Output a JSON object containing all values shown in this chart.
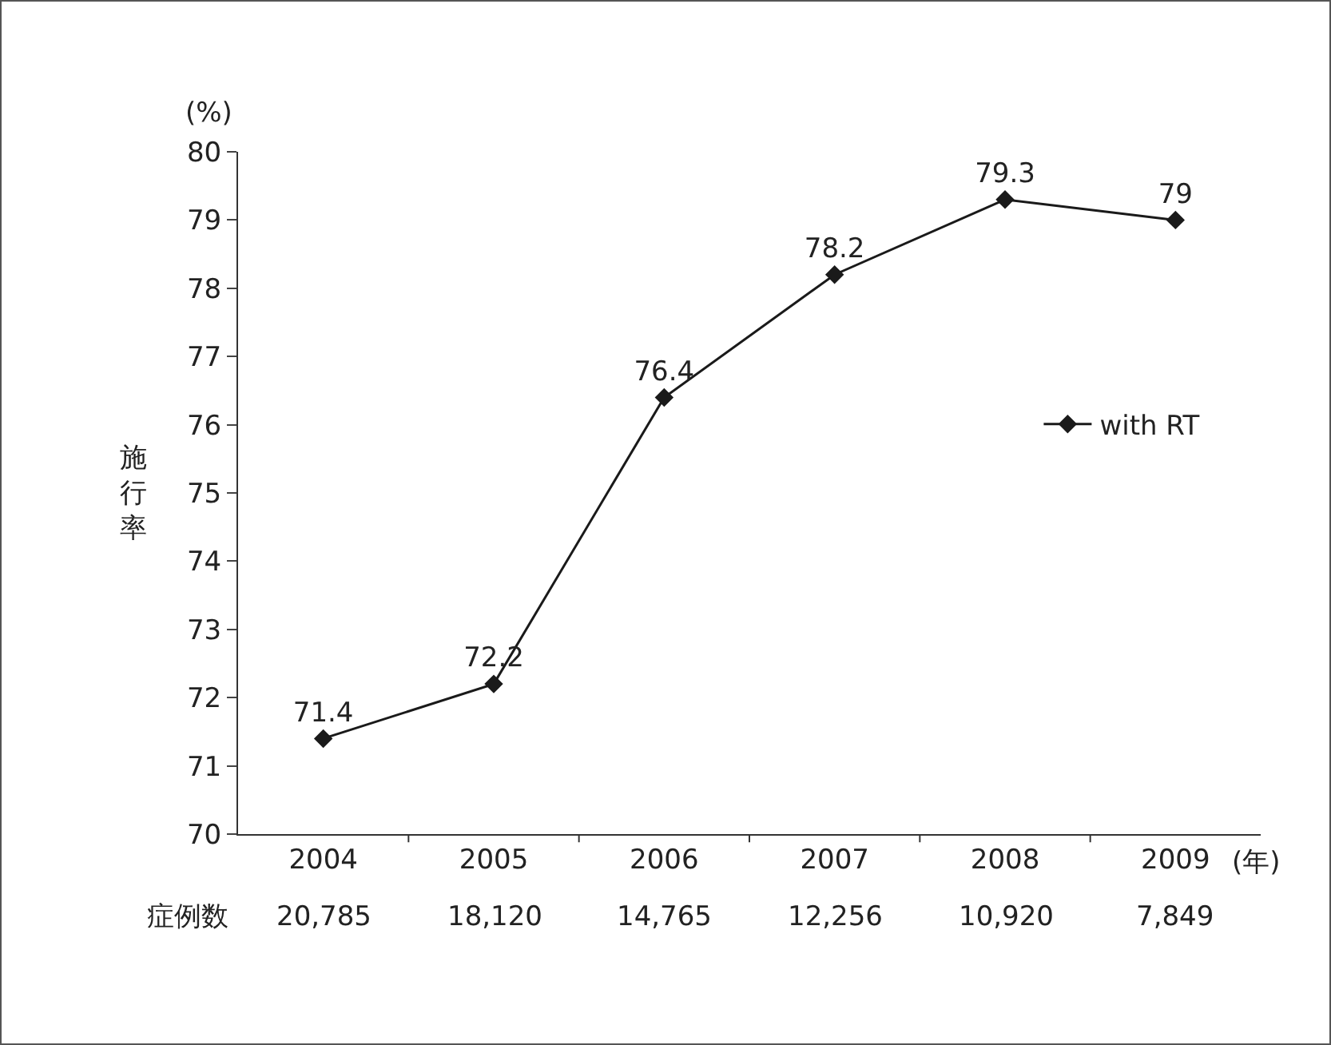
{
  "chart_data": {
    "type": "line",
    "categories": [
      "2004",
      "2005",
      "2006",
      "2007",
      "2008",
      "2009"
    ],
    "series": [
      {
        "name": "with RT",
        "color": "#1a1a1a",
        "values": [
          71.4,
          72.2,
          76.4,
          78.2,
          79.3,
          79
        ]
      }
    ],
    "ylabel": "施行率",
    "xlabel": "(年)",
    "ylim": [
      70,
      80
    ],
    "yticks": [
      70,
      71,
      72,
      73,
      74,
      75,
      76,
      77,
      78,
      79,
      80
    ],
    "annotations": [
      "(%)",
      "症例数",
      "20,785",
      "18,120",
      "14,765",
      "12,256",
      "10,920",
      "7,849"
    ],
    "data_labels": true,
    "marker": "diamond",
    "line_style": "solid",
    "grid": false,
    "legend": "right"
  }
}
